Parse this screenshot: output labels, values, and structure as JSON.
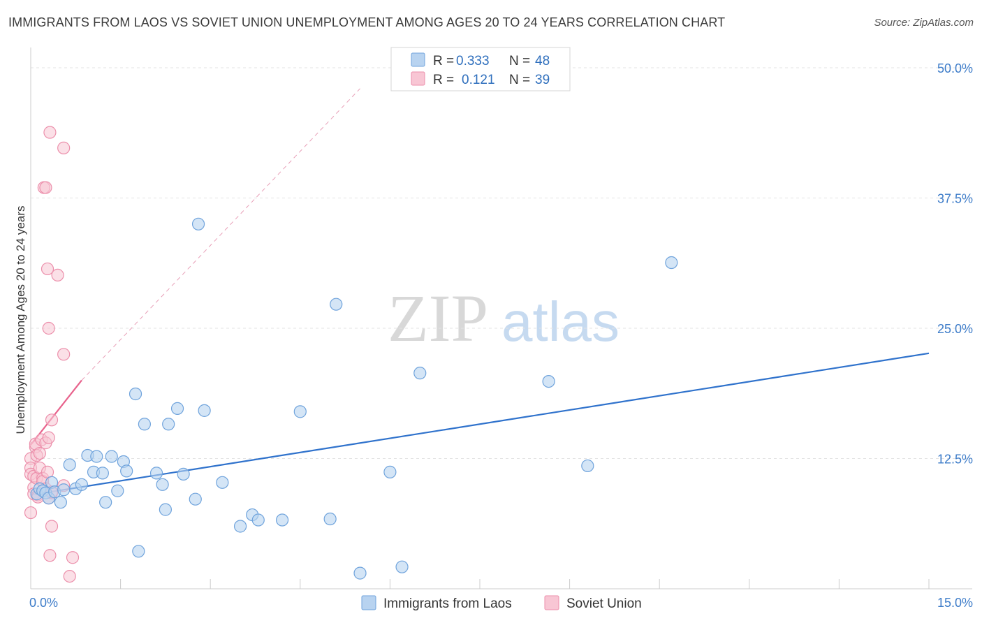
{
  "header": {
    "title": "IMMIGRANTS FROM LAOS VS SOVIET UNION UNEMPLOYMENT AMONG AGES 20 TO 24 YEARS CORRELATION CHART",
    "source": "Source: ZipAtlas.com"
  },
  "watermark": {
    "zip": "ZIP",
    "atlas": "atlas"
  },
  "colors": {
    "blue_fill": "#b8d3f0",
    "blue_stroke": "#6fa3dc",
    "blue_line": "#2f72cc",
    "pink_fill": "#f8c6d4",
    "pink_stroke": "#ec8fab",
    "pink_line": "#e8628c",
    "tick_label": "#3d7cc9",
    "grid": "#e3e3e3"
  },
  "legend": {
    "rows": [
      {
        "r_label": "R =",
        "r_value": "0.333",
        "n_label": "N =",
        "n_value": "48"
      },
      {
        "r_label": "R =",
        "r_value": "0.121",
        "n_label": "N =",
        "n_value": "39"
      }
    ]
  },
  "chart_data": {
    "type": "scatter",
    "title": "IMMIGRANTS FROM LAOS VS SOVIET UNION UNEMPLOYMENT AMONG AGES 20 TO 24 YEARS CORRELATION CHART",
    "xlabel": "",
    "ylabel": "Unemployment Among Ages 20 to 24 years",
    "xlim": [
      0,
      15
    ],
    "ylim": [
      0,
      50
    ],
    "x_tick_labels": [
      "0.0%",
      "15.0%"
    ],
    "y_ticks": [
      12.5,
      25.0,
      37.5,
      50.0
    ],
    "y_tick_labels": [
      "12.5%",
      "25.0%",
      "37.5%",
      "50.0%"
    ],
    "grid": true,
    "legend_position": "top-center",
    "series": [
      {
        "name": "Immigrants from Laos",
        "color": "blue",
        "R": 0.333,
        "N": 48,
        "trend": {
          "x": [
            0.0,
            15.0
          ],
          "y": [
            9.0,
            22.6
          ]
        },
        "points": [
          [
            0.1,
            9.1
          ],
          [
            0.15,
            9.6
          ],
          [
            0.2,
            9.4
          ],
          [
            0.25,
            9.2
          ],
          [
            0.3,
            8.7
          ],
          [
            0.35,
            10.2
          ],
          [
            0.4,
            9.3
          ],
          [
            0.5,
            8.3
          ],
          [
            0.55,
            9.5
          ],
          [
            0.65,
            11.9
          ],
          [
            0.75,
            9.6
          ],
          [
            0.85,
            10.0
          ],
          [
            0.95,
            12.8
          ],
          [
            1.05,
            11.2
          ],
          [
            1.1,
            12.7
          ],
          [
            1.2,
            11.1
          ],
          [
            1.25,
            8.3
          ],
          [
            1.35,
            12.7
          ],
          [
            1.45,
            9.4
          ],
          [
            1.55,
            12.2
          ],
          [
            1.6,
            11.3
          ],
          [
            1.75,
            18.7
          ],
          [
            1.8,
            3.6
          ],
          [
            1.9,
            15.8
          ],
          [
            2.1,
            11.1
          ],
          [
            2.2,
            10.0
          ],
          [
            2.25,
            7.6
          ],
          [
            2.3,
            15.8
          ],
          [
            2.45,
            17.3
          ],
          [
            2.55,
            11.0
          ],
          [
            2.75,
            8.6
          ],
          [
            2.8,
            35.0
          ],
          [
            2.9,
            17.1
          ],
          [
            3.2,
            10.2
          ],
          [
            3.5,
            6.0
          ],
          [
            3.7,
            7.1
          ],
          [
            3.8,
            6.6
          ],
          [
            4.2,
            6.6
          ],
          [
            4.5,
            17.0
          ],
          [
            5.0,
            6.7
          ],
          [
            5.1,
            27.3
          ],
          [
            5.5,
            1.5
          ],
          [
            6.0,
            11.2
          ],
          [
            6.2,
            2.1
          ],
          [
            6.5,
            20.7
          ],
          [
            8.65,
            19.9
          ],
          [
            9.3,
            11.8
          ],
          [
            10.7,
            31.3
          ]
        ]
      },
      {
        "name": "Soviet Union",
        "color": "pink",
        "R": 0.121,
        "N": 39,
        "trend": {
          "x": [
            0.0,
            0.85
          ],
          "y": [
            13.8,
            20.0
          ]
        },
        "trend_extended": {
          "x": [
            0.85,
            5.5
          ],
          "y": [
            20.0,
            48.0
          ]
        },
        "points": [
          [
            0.0,
            12.5
          ],
          [
            0.0,
            11.6
          ],
          [
            0.0,
            11.0
          ],
          [
            0.0,
            7.3
          ],
          [
            0.05,
            10.8
          ],
          [
            0.05,
            9.7
          ],
          [
            0.05,
            9.1
          ],
          [
            0.08,
            13.6
          ],
          [
            0.08,
            13.9
          ],
          [
            0.1,
            12.8
          ],
          [
            0.1,
            10.6
          ],
          [
            0.12,
            9.0
          ],
          [
            0.12,
            8.8
          ],
          [
            0.15,
            11.6
          ],
          [
            0.15,
            13.0
          ],
          [
            0.18,
            14.3
          ],
          [
            0.2,
            10.6
          ],
          [
            0.2,
            10.3
          ],
          [
            0.22,
            38.5
          ],
          [
            0.25,
            38.5
          ],
          [
            0.25,
            14.0
          ],
          [
            0.25,
            9.6
          ],
          [
            0.28,
            30.7
          ],
          [
            0.28,
            11.2
          ],
          [
            0.3,
            14.5
          ],
          [
            0.3,
            8.7
          ],
          [
            0.3,
            25.0
          ],
          [
            0.32,
            43.8
          ],
          [
            0.32,
            3.2
          ],
          [
            0.35,
            16.2
          ],
          [
            0.35,
            6.0
          ],
          [
            0.35,
            9.2
          ],
          [
            0.35,
            9.3
          ],
          [
            0.45,
            30.1
          ],
          [
            0.55,
            22.5
          ],
          [
            0.55,
            42.3
          ],
          [
            0.55,
            9.9
          ],
          [
            0.65,
            1.2
          ],
          [
            0.7,
            3.0
          ]
        ]
      }
    ]
  },
  "bottom_legend": {
    "items": [
      {
        "label": "Immigrants from Laos"
      },
      {
        "label": "Soviet Union"
      }
    ]
  }
}
